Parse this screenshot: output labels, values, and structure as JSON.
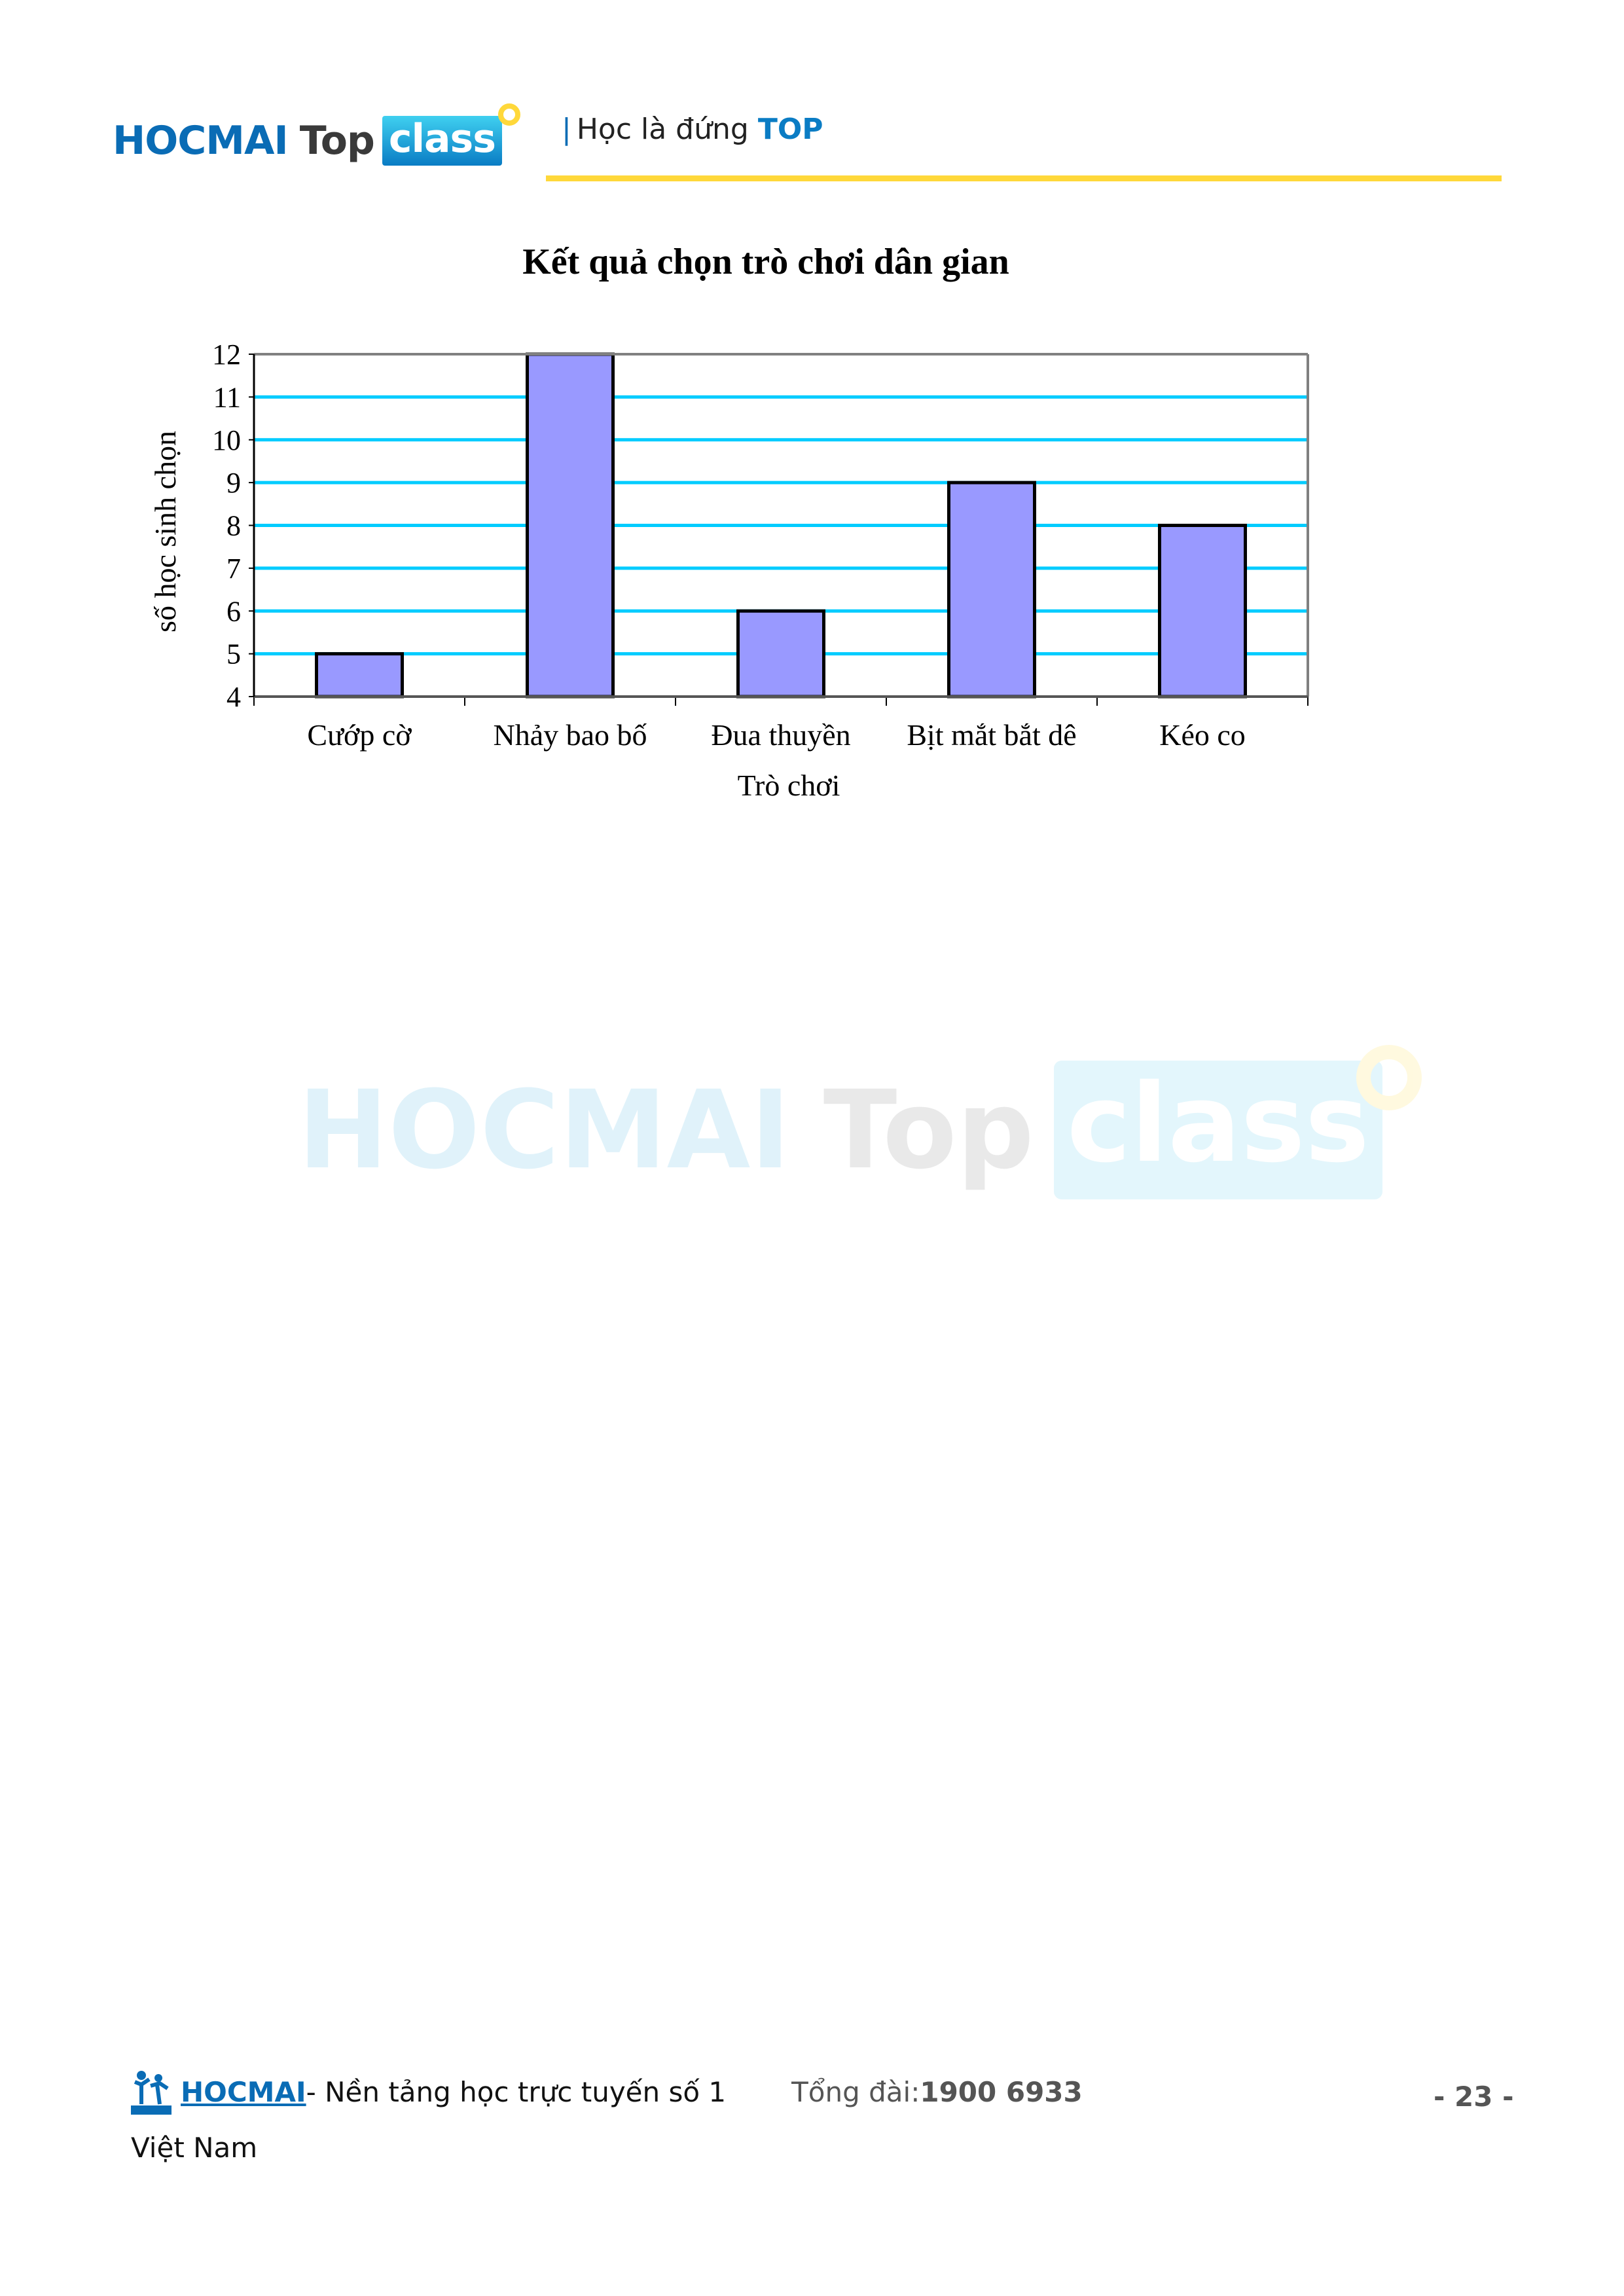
{
  "header": {
    "logo_text": "HOCMAI Top class",
    "logo_parts": [
      "HOCMAI",
      "Top",
      "class"
    ],
    "slogan_bar": "|",
    "slogan": "Học là đứng",
    "slogan_accent": "TOP"
  },
  "watermark": "HOCMAI Top class",
  "colors": {
    "brand_blue": "#0a6cb5",
    "accent_yellow": "#ffd83a",
    "bar_fill": "#9999ff",
    "grid": "#00ccff"
  },
  "chart_data": {
    "type": "bar",
    "title": "Kết quả chọn trò chơi dân gian",
    "xlabel": "Trò chơi",
    "ylabel": "số học sinh chọn",
    "categories": [
      "Cướp cờ",
      "Nhảy bao bố",
      "Đua thuyền",
      "Bịt mắt bắt dê",
      "Kéo co"
    ],
    "values": [
      5,
      12,
      6,
      9,
      8
    ],
    "ylim": [
      4,
      12
    ],
    "yticks": [
      4,
      5,
      6,
      7,
      8,
      9,
      10,
      11,
      12
    ],
    "grid": true
  },
  "footer": {
    "brand": "HOCMAI",
    "tagline": " - Nền tảng học trực tuyến số 1",
    "tagline2": "Việt Nam",
    "hotline_label": "Tổng đài: ",
    "hotline": "1900 6933",
    "page": "- 23 -"
  }
}
